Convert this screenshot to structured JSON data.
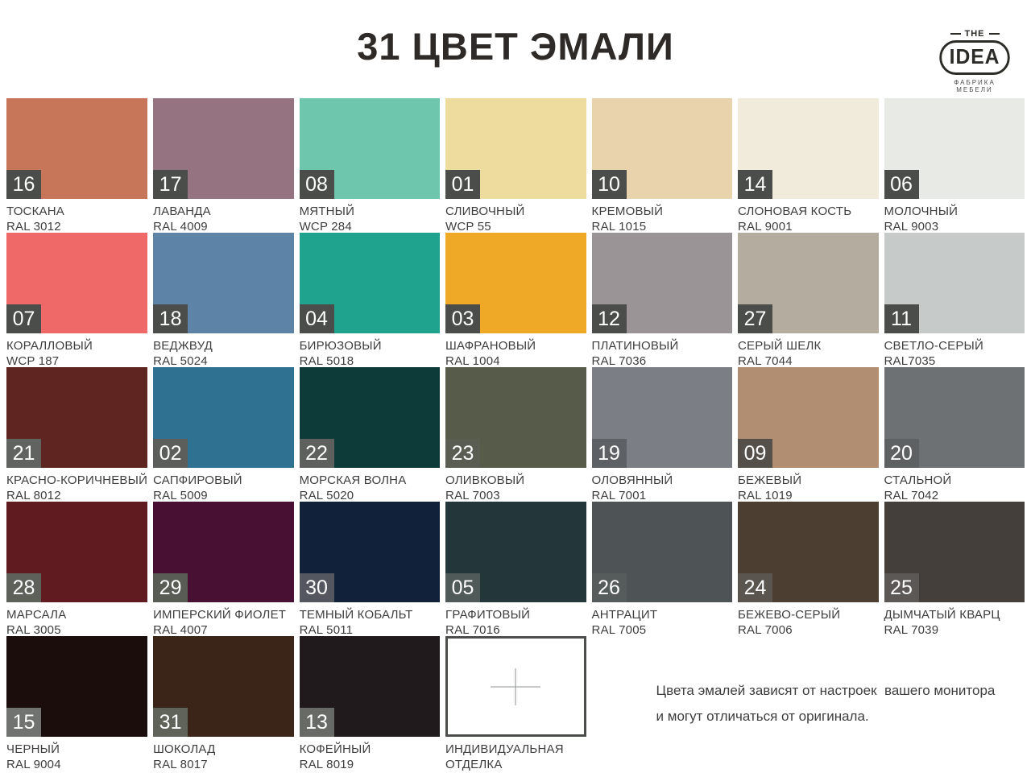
{
  "header": {
    "title": "31 ЦВЕТ ЭМАЛИ",
    "logo": {
      "top": "THE",
      "main": "IDEA",
      "tagline": "ФАБРИКА МЕБЕЛИ"
    }
  },
  "swatches": [
    {
      "num": "16",
      "name": "ТОСКАНА",
      "code": "RAL 3012",
      "color": "#c87659",
      "badge": "#4a4d49"
    },
    {
      "num": "17",
      "name": "ЛАВАНДА",
      "code": "RAL 4009",
      "color": "#957381",
      "badge": "#4a4d49"
    },
    {
      "num": "08",
      "name": "МЯТНЫЙ",
      "code": "WCP 284",
      "color": "#6ec6ac",
      "badge": "#4a4d49"
    },
    {
      "num": "01",
      "name": "СЛИВОЧНЫЙ",
      "code": "WCP 55",
      "color": "#eedc9e",
      "badge": "#4a4d49"
    },
    {
      "num": "10",
      "name": "КРЕМОВЫЙ",
      "code": "RAL 1015",
      "color": "#e8d3ad",
      "badge": "#4a4d49"
    },
    {
      "num": "14",
      "name": "СЛОНОВАЯ КОСТЬ",
      "code": "RAL 9001",
      "color": "#f0ebdb",
      "badge": "#4a4d49"
    },
    {
      "num": "06",
      "name": "МОЛОЧНЫЙ",
      "code": "RAL 9003",
      "color": "#e7eae5",
      "badge": "#4a4d49"
    },
    {
      "num": "07",
      "name": "КОРАЛЛОВЫЙ",
      "code": "WCP 187",
      "color": "#f06969",
      "badge": "#4a4d49"
    },
    {
      "num": "18",
      "name": "ВЕДЖВУД",
      "code": "RAL 5024",
      "color": "#5d84a7",
      "badge": "#4a4d49"
    },
    {
      "num": "04",
      "name": "БИРЮЗОВЫЙ",
      "code": "RAL 5018",
      "color": "#1fa28e",
      "badge": "#4a4d49"
    },
    {
      "num": "03",
      "name": "ШАФРАНОВЫЙ",
      "code": "RAL 1004",
      "color": "#f0a827",
      "badge": "#4a4d49"
    },
    {
      "num": "12",
      "name": "ПЛАТИНОВЫЙ",
      "code": "RAL 7036",
      "color": "#9b9497",
      "badge": "#4a4d49"
    },
    {
      "num": "27",
      "name": "СЕРЫЙ ШЕЛК",
      "code": "RAL 7044",
      "color": "#b3ac9f",
      "badge": "#4a4d49"
    },
    {
      "num": "11",
      "name": "СВЕТЛО-СЕРЫЙ",
      "code": "RAL7035",
      "color": "#c6cac8",
      "badge": "#4a4d49"
    },
    {
      "num": "21",
      "name": "КРАСНО-КОРИЧНЕВЫЙ",
      "code": "RAL 8012",
      "color": "#5e2521",
      "badge": "#60635f"
    },
    {
      "num": "02",
      "name": "САПФИРОВЫЙ",
      "code": "RAL 5009",
      "color": "#2e7190",
      "badge": "#5b5e5b"
    },
    {
      "num": "22",
      "name": "МОРСКАЯ ВОЛНА",
      "code": "RAL 5020",
      "color": "#0d3b39",
      "badge": "#5d605c"
    },
    {
      "num": "23",
      "name": "ОЛИВКОВЫЙ",
      "code": "RAL 7003",
      "color": "#575b49",
      "badge": "#5a5d52"
    },
    {
      "num": "19",
      "name": "ОЛОВЯННЫЙ",
      "code": "RAL 7001",
      "color": "#7b7e85",
      "badge": "#5d6064"
    },
    {
      "num": "09",
      "name": "БЕЖЕВЫЙ",
      "code": "RAL 1019",
      "color": "#b18e71",
      "badge": "#55504a"
    },
    {
      "num": "20",
      "name": "СТАЛЬНОЙ",
      "code": "RAL 7042",
      "color": "#6d7173",
      "badge": "#5d6162"
    },
    {
      "num": "28",
      "name": "МАРСАЛА",
      "code": "RAL 3005",
      "color": "#5f1b1f",
      "badge": "#5d615a"
    },
    {
      "num": "29",
      "name": "ИМПЕРСКИЙ ФИОЛЕТ",
      "code": "RAL 4007",
      "color": "#481134",
      "badge": "#585c54"
    },
    {
      "num": "30",
      "name": "ТЕМНЫЙ КОБАЛЬТ",
      "code": "RAL 5011",
      "color": "#102139",
      "badge": "#545760"
    },
    {
      "num": "05",
      "name": "ГРАФИТОВЫЙ",
      "code": "RAL 7016",
      "color": "#233639",
      "badge": "#4f5a59"
    },
    {
      "num": "26",
      "name": "АНТРАЦИТ",
      "code": "RAL 7005",
      "color": "#4e5456",
      "badge": "#565b5c"
    },
    {
      "num": "24",
      "name": "БЕЖЕВО-СЕРЫЙ",
      "code": "RAL 7006",
      "color": "#4c3e31",
      "badge": "#5a564f"
    },
    {
      "num": "25",
      "name": "ДЫМЧАТЫЙ КВАРЦ",
      "code": "RAL 7039",
      "color": "#453f3c",
      "badge": "#5c5855"
    },
    {
      "num": "15",
      "name": "ЧЕРНЫЙ",
      "code": "RAL 9004",
      "color": "#1a0d0b",
      "badge": "#70736f"
    },
    {
      "num": "31",
      "name": "ШОКОЛАД",
      "code": "RAL 8017",
      "color": "#3b2519",
      "badge": "#60635a"
    },
    {
      "num": "13",
      "name": "КОФЕЙНЫЙ",
      "code": "RAL 8019",
      "color": "#211a1d",
      "badge": "#686b65"
    }
  ],
  "custom_finish": {
    "label": "ИНДИВИДУАЛЬНАЯ ОТДЕЛКА",
    "border_color": "#4b4e4a",
    "cross_color": "#8b908c"
  },
  "disclaimer": {
    "line1": "Цвета эмалей зависят от настроек  вашего монитора",
    "line2": "и могут отличаться от оригинала."
  }
}
